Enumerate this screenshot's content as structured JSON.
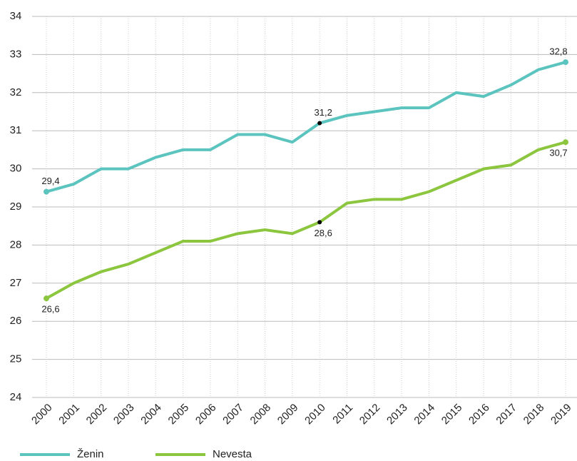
{
  "chart_data": {
    "type": "line",
    "categories": [
      "2000",
      "2001",
      "2002",
      "2003",
      "2004",
      "2005",
      "2006",
      "2007",
      "2008",
      "2009",
      "2010",
      "2011",
      "2012",
      "2013",
      "2014",
      "2015",
      "2016",
      "2017",
      "2018",
      "2019"
    ],
    "series": [
      {
        "name": "Ženin",
        "color": "#5bc4bf",
        "values": [
          29.4,
          29.6,
          30.0,
          30.0,
          30.3,
          30.5,
          30.5,
          30.9,
          30.9,
          30.7,
          31.2,
          31.4,
          31.5,
          31.6,
          31.6,
          32.0,
          31.9,
          32.2,
          32.6,
          32.8
        ],
        "value_labels": [
          "29,4",
          null,
          null,
          null,
          null,
          null,
          null,
          null,
          null,
          null,
          "31,2",
          null,
          null,
          null,
          null,
          null,
          null,
          null,
          null,
          "32,8"
        ]
      },
      {
        "name": "Nevesta",
        "color": "#8cc63f",
        "values": [
          26.6,
          27.0,
          27.3,
          27.5,
          27.8,
          28.1,
          28.1,
          28.3,
          28.4,
          28.3,
          28.6,
          29.1,
          29.2,
          29.2,
          29.4,
          29.7,
          30.0,
          30.1,
          30.5,
          30.7
        ],
        "value_labels": [
          "26,6",
          null,
          null,
          null,
          null,
          null,
          null,
          null,
          null,
          null,
          "28,6",
          null,
          null,
          null,
          null,
          null,
          null,
          null,
          null,
          "30,7"
        ]
      }
    ],
    "ylim": [
      24,
      34
    ],
    "yticks": [
      24,
      25,
      26,
      27,
      28,
      29,
      30,
      31,
      32,
      33,
      34
    ],
    "grid": true
  }
}
